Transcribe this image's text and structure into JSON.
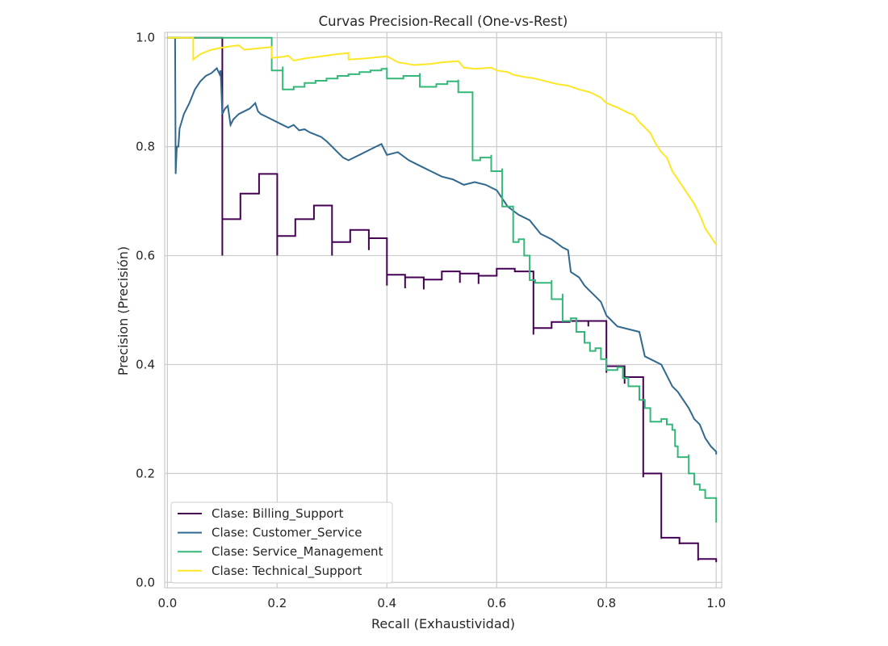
{
  "chart_data": {
    "type": "line",
    "title": "Curvas Precision-Recall (One-vs-Rest)",
    "xlabel": "Recall (Exhaustividad)",
    "ylabel": "Precision (Precisión)",
    "xlim": [
      -0.005,
      1.01
    ],
    "ylim": [
      -0.01,
      1.01
    ],
    "xticks": [
      "0.0",
      "0.2",
      "0.4",
      "0.6",
      "0.8",
      "1.0"
    ],
    "yticks": [
      "0.0",
      "0.2",
      "0.4",
      "0.6",
      "0.8",
      "1.0"
    ],
    "grid": true,
    "legend_position": "lower-left",
    "series": [
      {
        "name": "Clase: Billing_Support",
        "color": "#440154",
        "step_points": [
          [
            0.0,
            1.0
          ],
          [
            0.1,
            1.0
          ],
          [
            0.1,
            0.6
          ],
          [
            0.1,
            0.667
          ],
          [
            0.133,
            0.667
          ],
          [
            0.133,
            0.714
          ],
          [
            0.167,
            0.714
          ],
          [
            0.167,
            0.75
          ],
          [
            0.2,
            0.75
          ],
          [
            0.2,
            0.6
          ],
          [
            0.2,
            0.636
          ],
          [
            0.233,
            0.636
          ],
          [
            0.233,
            0.667
          ],
          [
            0.267,
            0.667
          ],
          [
            0.267,
            0.692
          ],
          [
            0.3,
            0.692
          ],
          [
            0.3,
            0.6
          ],
          [
            0.3,
            0.625
          ],
          [
            0.333,
            0.625
          ],
          [
            0.333,
            0.647
          ],
          [
            0.367,
            0.647
          ],
          [
            0.367,
            0.61
          ],
          [
            0.367,
            0.632
          ],
          [
            0.4,
            0.632
          ],
          [
            0.4,
            0.545
          ],
          [
            0.4,
            0.565
          ],
          [
            0.433,
            0.565
          ],
          [
            0.433,
            0.54
          ],
          [
            0.433,
            0.56
          ],
          [
            0.467,
            0.56
          ],
          [
            0.467,
            0.538
          ],
          [
            0.467,
            0.556
          ],
          [
            0.5,
            0.556
          ],
          [
            0.5,
            0.571
          ],
          [
            0.533,
            0.571
          ],
          [
            0.533,
            0.55
          ],
          [
            0.533,
            0.567
          ],
          [
            0.567,
            0.567
          ],
          [
            0.567,
            0.548
          ],
          [
            0.567,
            0.563
          ],
          [
            0.6,
            0.563
          ],
          [
            0.6,
            0.576
          ],
          [
            0.633,
            0.576
          ],
          [
            0.633,
            0.571
          ],
          [
            0.667,
            0.571
          ],
          [
            0.667,
            0.455
          ],
          [
            0.667,
            0.467
          ],
          [
            0.7,
            0.467
          ],
          [
            0.7,
            0.478
          ],
          [
            0.733,
            0.478
          ],
          [
            0.733,
            0.48
          ],
          [
            0.767,
            0.48
          ],
          [
            0.767,
            0.47
          ],
          [
            0.767,
            0.48
          ],
          [
            0.8,
            0.48
          ],
          [
            0.8,
            0.385
          ],
          [
            0.8,
            0.397
          ],
          [
            0.833,
            0.397
          ],
          [
            0.833,
            0.365
          ],
          [
            0.833,
            0.377
          ],
          [
            0.867,
            0.377
          ],
          [
            0.867,
            0.193
          ],
          [
            0.867,
            0.2
          ],
          [
            0.9,
            0.2
          ],
          [
            0.9,
            0.08
          ],
          [
            0.9,
            0.082
          ],
          [
            0.933,
            0.082
          ],
          [
            0.933,
            0.07
          ],
          [
            0.933,
            0.072
          ],
          [
            0.967,
            0.072
          ],
          [
            0.967,
            0.04
          ],
          [
            0.967,
            0.043
          ],
          [
            1.0,
            0.043
          ],
          [
            1.0,
            0.037
          ]
        ]
      },
      {
        "name": "Clase: Customer_Service",
        "color": "#31688e",
        "points": [
          [
            0.0,
            1.0
          ],
          [
            0.014,
            1.0
          ],
          [
            0.015,
            0.75
          ],
          [
            0.017,
            0.8
          ],
          [
            0.02,
            0.8
          ],
          [
            0.022,
            0.833
          ],
          [
            0.03,
            0.86
          ],
          [
            0.04,
            0.88
          ],
          [
            0.05,
            0.905
          ],
          [
            0.06,
            0.92
          ],
          [
            0.07,
            0.93
          ],
          [
            0.08,
            0.935
          ],
          [
            0.09,
            0.944
          ],
          [
            0.095,
            0.933
          ],
          [
            0.097,
            0.94
          ],
          [
            0.1,
            0.86
          ],
          [
            0.105,
            0.87
          ],
          [
            0.11,
            0.875
          ],
          [
            0.115,
            0.84
          ],
          [
            0.12,
            0.85
          ],
          [
            0.13,
            0.86
          ],
          [
            0.14,
            0.865
          ],
          [
            0.15,
            0.87
          ],
          [
            0.16,
            0.88
          ],
          [
            0.165,
            0.865
          ],
          [
            0.17,
            0.86
          ],
          [
            0.18,
            0.855
          ],
          [
            0.19,
            0.85
          ],
          [
            0.2,
            0.845
          ],
          [
            0.21,
            0.84
          ],
          [
            0.22,
            0.835
          ],
          [
            0.23,
            0.84
          ],
          [
            0.24,
            0.83
          ],
          [
            0.25,
            0.832
          ],
          [
            0.26,
            0.826
          ],
          [
            0.27,
            0.822
          ],
          [
            0.28,
            0.818
          ],
          [
            0.29,
            0.81
          ],
          [
            0.3,
            0.8
          ],
          [
            0.31,
            0.79
          ],
          [
            0.32,
            0.78
          ],
          [
            0.33,
            0.775
          ],
          [
            0.34,
            0.78
          ],
          [
            0.35,
            0.785
          ],
          [
            0.36,
            0.79
          ],
          [
            0.37,
            0.795
          ],
          [
            0.38,
            0.8
          ],
          [
            0.39,
            0.805
          ],
          [
            0.4,
            0.785
          ],
          [
            0.42,
            0.79
          ],
          [
            0.44,
            0.775
          ],
          [
            0.46,
            0.765
          ],
          [
            0.48,
            0.755
          ],
          [
            0.5,
            0.745
          ],
          [
            0.52,
            0.74
          ],
          [
            0.54,
            0.73
          ],
          [
            0.56,
            0.735
          ],
          [
            0.58,
            0.73
          ],
          [
            0.6,
            0.72
          ],
          [
            0.62,
            0.69
          ],
          [
            0.64,
            0.675
          ],
          [
            0.66,
            0.665
          ],
          [
            0.68,
            0.64
          ],
          [
            0.7,
            0.63
          ],
          [
            0.72,
            0.615
          ],
          [
            0.73,
            0.61
          ],
          [
            0.735,
            0.57
          ],
          [
            0.75,
            0.56
          ],
          [
            0.76,
            0.545
          ],
          [
            0.77,
            0.535
          ],
          [
            0.78,
            0.525
          ],
          [
            0.79,
            0.515
          ],
          [
            0.8,
            0.49
          ],
          [
            0.82,
            0.47
          ],
          [
            0.84,
            0.465
          ],
          [
            0.86,
            0.46
          ],
          [
            0.87,
            0.415
          ],
          [
            0.88,
            0.41
          ],
          [
            0.9,
            0.4
          ],
          [
            0.91,
            0.38
          ],
          [
            0.92,
            0.36
          ],
          [
            0.93,
            0.35
          ],
          [
            0.94,
            0.335
          ],
          [
            0.95,
            0.32
          ],
          [
            0.96,
            0.3
          ],
          [
            0.97,
            0.29
          ],
          [
            0.98,
            0.265
          ],
          [
            0.99,
            0.25
          ],
          [
            1.0,
            0.24
          ],
          [
            1.0,
            0.235
          ]
        ]
      },
      {
        "name": "Clase: Service_Management",
        "color": "#35b779",
        "step_points": [
          [
            0.0,
            1.0
          ],
          [
            0.19,
            1.0
          ],
          [
            0.19,
            0.94
          ],
          [
            0.21,
            0.947
          ],
          [
            0.21,
            0.905
          ],
          [
            0.23,
            0.91
          ],
          [
            0.25,
            0.917
          ],
          [
            0.27,
            0.921
          ],
          [
            0.29,
            0.925
          ],
          [
            0.31,
            0.93
          ],
          [
            0.33,
            0.933
          ],
          [
            0.35,
            0.937
          ],
          [
            0.37,
            0.94
          ],
          [
            0.39,
            0.943
          ],
          [
            0.4,
            0.945
          ],
          [
            0.4,
            0.925
          ],
          [
            0.43,
            0.93
          ],
          [
            0.46,
            0.935
          ],
          [
            0.46,
            0.91
          ],
          [
            0.49,
            0.915
          ],
          [
            0.51,
            0.92
          ],
          [
            0.53,
            0.923
          ],
          [
            0.53,
            0.9
          ],
          [
            0.556,
            0.9
          ],
          [
            0.556,
            0.775
          ],
          [
            0.57,
            0.78
          ],
          [
            0.59,
            0.785
          ],
          [
            0.59,
            0.755
          ],
          [
            0.61,
            0.76
          ],
          [
            0.61,
            0.69
          ],
          [
            0.63,
            0.69
          ],
          [
            0.63,
            0.625
          ],
          [
            0.64,
            0.63
          ],
          [
            0.65,
            0.6
          ],
          [
            0.66,
            0.58
          ],
          [
            0.66,
            0.555
          ],
          [
            0.67,
            0.55
          ],
          [
            0.7,
            0.555
          ],
          [
            0.7,
            0.52
          ],
          [
            0.72,
            0.53
          ],
          [
            0.72,
            0.48
          ],
          [
            0.735,
            0.485
          ],
          [
            0.745,
            0.46
          ],
          [
            0.76,
            0.44
          ],
          [
            0.77,
            0.425
          ],
          [
            0.78,
            0.43
          ],
          [
            0.79,
            0.41
          ],
          [
            0.8,
            0.39
          ],
          [
            0.82,
            0.395
          ],
          [
            0.83,
            0.375
          ],
          [
            0.84,
            0.36
          ],
          [
            0.86,
            0.355
          ],
          [
            0.86,
            0.335
          ],
          [
            0.87,
            0.32
          ],
          [
            0.88,
            0.31
          ],
          [
            0.88,
            0.295
          ],
          [
            0.9,
            0.3
          ],
          [
            0.91,
            0.29
          ],
          [
            0.92,
            0.28
          ],
          [
            0.925,
            0.25
          ],
          [
            0.93,
            0.23
          ],
          [
            0.95,
            0.235
          ],
          [
            0.95,
            0.2
          ],
          [
            0.96,
            0.18
          ],
          [
            0.97,
            0.17
          ],
          [
            0.98,
            0.155
          ],
          [
            1.0,
            0.155
          ],
          [
            1.0,
            0.11
          ]
        ]
      },
      {
        "name": "Clase: Technical_Support",
        "color": "#fde725",
        "points": [
          [
            0.0,
            1.0
          ],
          [
            0.047,
            1.0
          ],
          [
            0.047,
            0.96
          ],
          [
            0.06,
            0.97
          ],
          [
            0.08,
            0.978
          ],
          [
            0.1,
            0.982
          ],
          [
            0.12,
            0.985
          ],
          [
            0.13,
            0.986
          ],
          [
            0.14,
            0.978
          ],
          [
            0.16,
            0.98
          ],
          [
            0.18,
            0.982
          ],
          [
            0.19,
            0.983
          ],
          [
            0.19,
            0.963
          ],
          [
            0.21,
            0.965
          ],
          [
            0.22,
            0.967
          ],
          [
            0.23,
            0.958
          ],
          [
            0.25,
            0.962
          ],
          [
            0.28,
            0.966
          ],
          [
            0.31,
            0.97
          ],
          [
            0.33,
            0.972
          ],
          [
            0.33,
            0.96
          ],
          [
            0.36,
            0.962
          ],
          [
            0.38,
            0.964
          ],
          [
            0.4,
            0.966
          ],
          [
            0.42,
            0.955
          ],
          [
            0.45,
            0.95
          ],
          [
            0.48,
            0.952
          ],
          [
            0.5,
            0.955
          ],
          [
            0.53,
            0.957
          ],
          [
            0.54,
            0.945
          ],
          [
            0.56,
            0.943
          ],
          [
            0.59,
            0.945
          ],
          [
            0.6,
            0.94
          ],
          [
            0.62,
            0.937
          ],
          [
            0.63,
            0.932
          ],
          [
            0.65,
            0.928
          ],
          [
            0.67,
            0.925
          ],
          [
            0.69,
            0.92
          ],
          [
            0.71,
            0.915
          ],
          [
            0.73,
            0.912
          ],
          [
            0.75,
            0.905
          ],
          [
            0.77,
            0.9
          ],
          [
            0.79,
            0.89
          ],
          [
            0.8,
            0.88
          ],
          [
            0.82,
            0.872
          ],
          [
            0.84,
            0.862
          ],
          [
            0.85,
            0.858
          ],
          [
            0.86,
            0.845
          ],
          [
            0.87,
            0.835
          ],
          [
            0.88,
            0.825
          ],
          [
            0.89,
            0.805
          ],
          [
            0.9,
            0.79
          ],
          [
            0.91,
            0.78
          ],
          [
            0.92,
            0.755
          ],
          [
            0.93,
            0.74
          ],
          [
            0.94,
            0.725
          ],
          [
            0.95,
            0.71
          ],
          [
            0.96,
            0.695
          ],
          [
            0.97,
            0.675
          ],
          [
            0.98,
            0.65
          ],
          [
            0.99,
            0.635
          ],
          [
            1.0,
            0.62
          ]
        ]
      }
    ]
  }
}
